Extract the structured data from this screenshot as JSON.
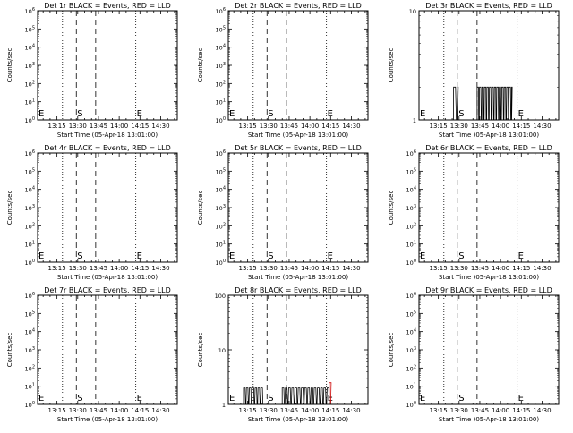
{
  "chart_data": [
    {
      "type": "line",
      "title": "Det 1r BLACK = Events, RED = LLD",
      "xlabel": "Start Time (05-Apr-18 13:01:00)",
      "ylabel": "Counts/sec",
      "xlim": [
        "13:01",
        "14:42"
      ],
      "x_ticks": [
        "13:15",
        "13:30",
        "13:45",
        "14:00",
        "14:15",
        "14:30"
      ],
      "y_scale": "log",
      "ylim": [
        1,
        1000000
      ],
      "y_ticks": [
        "10^0",
        "10^1",
        "10^2",
        "10^3",
        "10^4",
        "10^5",
        "10^6"
      ],
      "dotted_lines": [
        "13:19",
        "14:12"
      ],
      "dashed_lines": [
        "13:29",
        "13:43"
      ],
      "markers": [
        {
          "label": "E",
          "x": "13:01"
        },
        {
          "label": "S",
          "x": "13:29"
        },
        {
          "label": "E",
          "x": "14:12"
        }
      ],
      "series": []
    },
    {
      "type": "line",
      "title": "Det 2r BLACK = Events, RED = LLD",
      "xlabel": "Start Time (05-Apr-18 13:01:00)",
      "ylabel": "Counts/sec",
      "xlim": [
        "13:01",
        "14:42"
      ],
      "x_ticks": [
        "13:15",
        "13:30",
        "13:45",
        "14:00",
        "14:15",
        "14:30"
      ],
      "y_scale": "log",
      "ylim": [
        1,
        1000000
      ],
      "y_ticks": [
        "10^0",
        "10^1",
        "10^2",
        "10^3",
        "10^4",
        "10^5",
        "10^6"
      ],
      "dotted_lines": [
        "13:19",
        "14:12"
      ],
      "dashed_lines": [
        "13:29",
        "13:43"
      ],
      "markers": [
        {
          "label": "E",
          "x": "13:01"
        },
        {
          "label": "S",
          "x": "13:29"
        },
        {
          "label": "E",
          "x": "14:12"
        }
      ],
      "series": []
    },
    {
      "type": "line",
      "title": "Det 3r BLACK = Events, RED = LLD",
      "xlabel": "Start Time (05-Apr-18 13:01:00)",
      "ylabel": "Counts/sec",
      "xlim": [
        "13:01",
        "14:42"
      ],
      "x_ticks": [
        "13:15",
        "13:30",
        "13:45",
        "14:00",
        "14:15",
        "14:30"
      ],
      "y_scale": "log",
      "ylim": [
        1,
        10
      ],
      "y_ticks": [
        "1",
        "10"
      ],
      "dotted_lines": [
        "13:19",
        "14:12"
      ],
      "dashed_lines": [
        "13:29",
        "13:43"
      ],
      "markers": [
        {
          "label": "E",
          "x": "13:01"
        },
        {
          "label": "S",
          "x": "13:29"
        },
        {
          "label": "E",
          "x": "14:12"
        }
      ],
      "series": [
        {
          "color": "#000000",
          "segments": [
            {
              "x0": "13:26",
              "x1": "13:29",
              "level": 2,
              "density": 3
            },
            {
              "x0": "13:43",
              "x1": "14:08",
              "level": 2,
              "density": 42
            }
          ]
        }
      ]
    },
    {
      "type": "line",
      "title": "Det 4r BLACK = Events, RED = LLD",
      "xlabel": "Start Time (05-Apr-18 13:01:00)",
      "ylabel": "Counts/sec",
      "xlim": [
        "13:01",
        "14:42"
      ],
      "x_ticks": [
        "13:15",
        "13:30",
        "13:45",
        "14:00",
        "14:15",
        "14:30"
      ],
      "y_scale": "log",
      "ylim": [
        1,
        1000000
      ],
      "y_ticks": [
        "10^0",
        "10^1",
        "10^2",
        "10^3",
        "10^4",
        "10^5",
        "10^6"
      ],
      "dotted_lines": [
        "13:19",
        "14:12"
      ],
      "dashed_lines": [
        "13:29",
        "13:43"
      ],
      "markers": [
        {
          "label": "E",
          "x": "13:01"
        },
        {
          "label": "S",
          "x": "13:29"
        },
        {
          "label": "E",
          "x": "14:12"
        }
      ],
      "series": []
    },
    {
      "type": "line",
      "title": "Det 5r BLACK = Events, RED = LLD",
      "xlabel": "Start Time (05-Apr-18 13:01:00)",
      "ylabel": "Counts/sec",
      "xlim": [
        "13:01",
        "14:42"
      ],
      "x_ticks": [
        "13:15",
        "13:30",
        "13:45",
        "14:00",
        "14:15",
        "14:30"
      ],
      "y_scale": "log",
      "ylim": [
        1,
        1000000
      ],
      "y_ticks": [
        "10^0",
        "10^1",
        "10^2",
        "10^3",
        "10^4",
        "10^5",
        "10^6"
      ],
      "dotted_lines": [
        "13:19",
        "14:12"
      ],
      "dashed_lines": [
        "13:29",
        "13:43"
      ],
      "markers": [
        {
          "label": "E",
          "x": "13:01"
        },
        {
          "label": "S",
          "x": "13:29"
        },
        {
          "label": "E",
          "x": "14:12"
        }
      ],
      "series": []
    },
    {
      "type": "line",
      "title": "Det 6r BLACK = Events, RED = LLD",
      "xlabel": "Start Time (05-Apr-18 13:01:00)",
      "ylabel": "Counts/sec",
      "xlim": [
        "13:01",
        "14:42"
      ],
      "x_ticks": [
        "13:15",
        "13:30",
        "13:45",
        "14:00",
        "14:15",
        "14:30"
      ],
      "y_scale": "log",
      "ylim": [
        1,
        1000000
      ],
      "y_ticks": [
        "10^0",
        "10^1",
        "10^2",
        "10^3",
        "10^4",
        "10^5",
        "10^6"
      ],
      "dotted_lines": [
        "13:19",
        "14:12"
      ],
      "dashed_lines": [
        "13:29",
        "13:43"
      ],
      "markers": [
        {
          "label": "E",
          "x": "13:01"
        },
        {
          "label": "S",
          "x": "13:29"
        },
        {
          "label": "E",
          "x": "14:12"
        }
      ],
      "series": []
    },
    {
      "type": "line",
      "title": "Det 7r BLACK = Events, RED = LLD",
      "xlabel": "Start Time (05-Apr-18 13:01:00)",
      "ylabel": "Counts/sec",
      "xlim": [
        "13:01",
        "14:42"
      ],
      "x_ticks": [
        "13:15",
        "13:30",
        "13:45",
        "14:00",
        "14:15",
        "14:30"
      ],
      "y_scale": "log",
      "ylim": [
        1,
        1000000
      ],
      "y_ticks": [
        "10^0",
        "10^1",
        "10^2",
        "10^3",
        "10^4",
        "10^5",
        "10^6"
      ],
      "dotted_lines": [
        "13:19",
        "14:12"
      ],
      "dashed_lines": [
        "13:29",
        "13:43"
      ],
      "markers": [
        {
          "label": "E",
          "x": "13:01"
        },
        {
          "label": "S",
          "x": "13:29"
        },
        {
          "label": "E",
          "x": "14:12"
        }
      ],
      "series": []
    },
    {
      "type": "line",
      "title": "Det 8r BLACK = Events, RED = LLD",
      "xlabel": "Start Time (05-Apr-18 13:01:00)",
      "ylabel": "Counts/sec",
      "xlim": [
        "13:01",
        "14:42"
      ],
      "x_ticks": [
        "13:15",
        "13:30",
        "13:45",
        "14:00",
        "14:15",
        "14:30"
      ],
      "y_scale": "log",
      "ylim": [
        1,
        100
      ],
      "y_ticks": [
        "1",
        "10",
        "100"
      ],
      "dotted_lines": [
        "13:19",
        "14:12"
      ],
      "dashed_lines": [
        "13:29",
        "13:43"
      ],
      "markers": [
        {
          "label": "E",
          "x": "13:01"
        },
        {
          "label": "S",
          "x": "13:29"
        },
        {
          "label": "E",
          "x": "14:12"
        }
      ],
      "series": [
        {
          "color": "#000000",
          "segments": [
            {
              "x0": "13:12",
              "x1": "13:26",
              "level": 2,
              "density": 20
            },
            {
              "x0": "13:40",
              "x1": "14:14",
              "level": 2,
              "density": 44
            }
          ]
        },
        {
          "color": "#cc0000",
          "segments": [
            {
              "x0": "14:14",
              "x1": "14:15",
              "level": 2.5,
              "density": 1
            }
          ]
        }
      ]
    },
    {
      "type": "line",
      "title": "Det 9r BLACK = Events, RED = LLD",
      "xlabel": "Start Time (05-Apr-18 13:01:00)",
      "ylabel": "Counts/sec",
      "xlim": [
        "13:01",
        "14:42"
      ],
      "x_ticks": [
        "13:15",
        "13:30",
        "13:45",
        "14:00",
        "14:15",
        "14:30"
      ],
      "y_scale": "log",
      "ylim": [
        1,
        1000000
      ],
      "y_ticks": [
        "10^0",
        "10^1",
        "10^2",
        "10^3",
        "10^4",
        "10^5",
        "10^6"
      ],
      "dotted_lines": [
        "13:19",
        "14:12"
      ],
      "dashed_lines": [
        "13:29",
        "13:43"
      ],
      "markers": [
        {
          "label": "E",
          "x": "13:01"
        },
        {
          "label": "S",
          "x": "13:29"
        },
        {
          "label": "E",
          "x": "14:12"
        }
      ],
      "series": []
    }
  ]
}
